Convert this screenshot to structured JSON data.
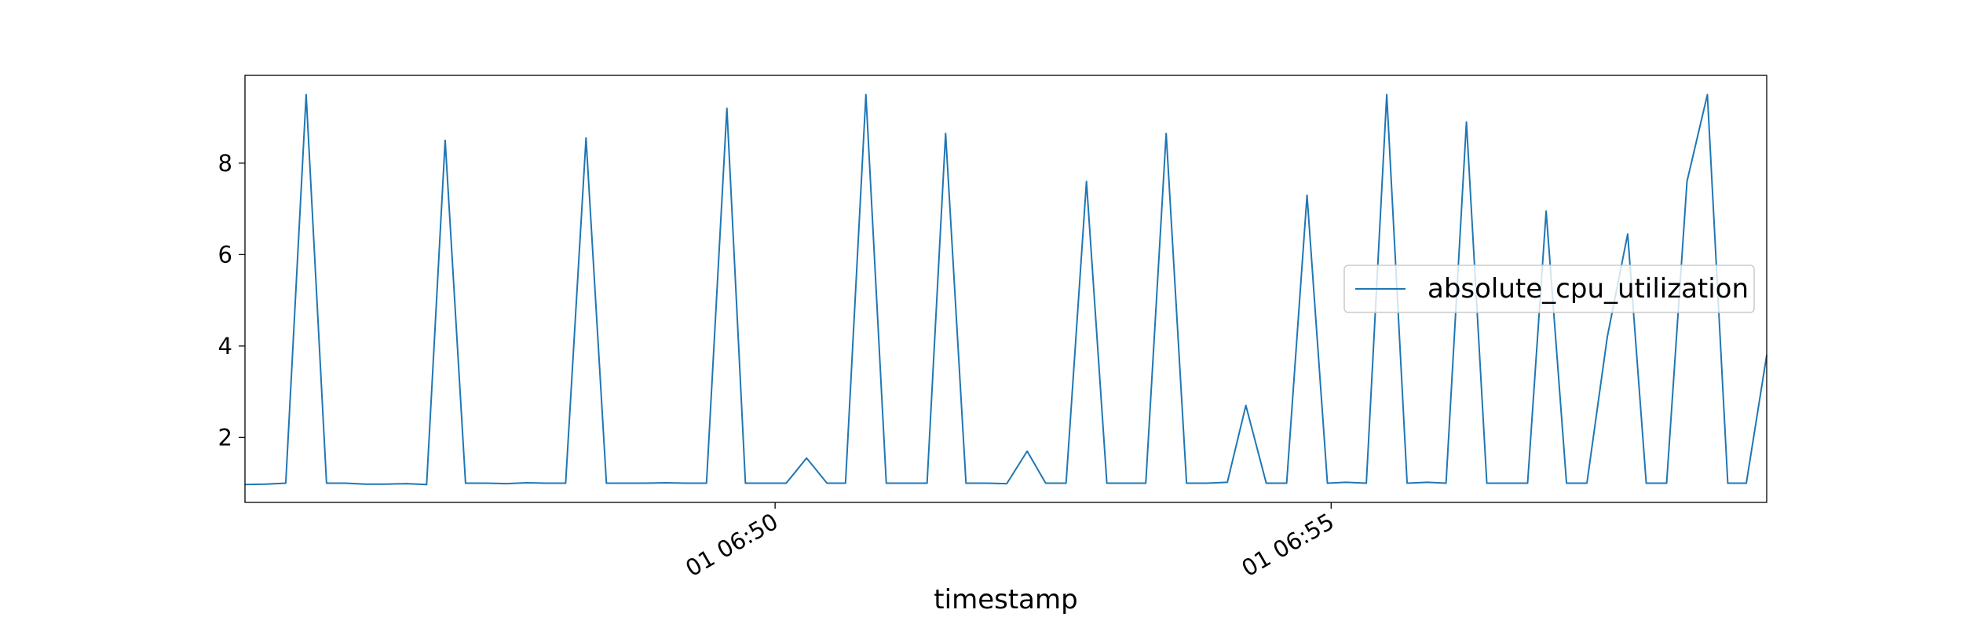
{
  "chart_data": {
    "type": "line",
    "xlabel": "timestamp",
    "x": [
      "01 06:45:14",
      "01 06:45:25",
      "01 06:45:36",
      "01 06:45:47",
      "01 06:45:58",
      "01 06:46:08",
      "01 06:46:19",
      "01 06:46:30",
      "01 06:46:41",
      "01 06:46:52",
      "01 06:47:02",
      "01 06:47:13",
      "01 06:47:24",
      "01 06:47:35",
      "01 06:47:46",
      "01 06:47:56",
      "01 06:48:07",
      "01 06:48:18",
      "01 06:48:29",
      "01 06:48:40",
      "01 06:48:50",
      "01 06:49:01",
      "01 06:49:12",
      "01 06:49:23",
      "01 06:49:34",
      "01 06:49:44",
      "01 06:49:55",
      "01 06:50:06",
      "01 06:50:17",
      "01 06:50:28",
      "01 06:50:38",
      "01 06:50:49",
      "01 06:51:00",
      "01 06:51:11",
      "01 06:51:22",
      "01 06:51:32",
      "01 06:51:43",
      "01 06:51:54",
      "01 06:52:05",
      "01 06:52:16",
      "01 06:52:26",
      "01 06:52:37",
      "01 06:52:48",
      "01 06:52:59",
      "01 06:53:10",
      "01 06:53:20",
      "01 06:53:31",
      "01 06:53:42",
      "01 06:53:53",
      "01 06:54:04",
      "01 06:54:14",
      "01 06:54:25",
      "01 06:54:36",
      "01 06:54:47",
      "01 06:54:58",
      "01 06:55:08",
      "01 06:55:19",
      "01 06:55:30",
      "01 06:55:41",
      "01 06:55:52",
      "01 06:56:02",
      "01 06:56:13",
      "01 06:56:24",
      "01 06:56:35",
      "01 06:56:46",
      "01 06:56:56",
      "01 06:57:07",
      "01 06:57:18",
      "01 06:57:29",
      "01 06:57:40",
      "01 06:57:50",
      "01 06:58:01",
      "01 06:58:12",
      "01 06:58:23",
      "01 06:58:34",
      "01 06:58:44",
      "01 06:58:55"
    ],
    "series": [
      {
        "name": "absolute_cpu_utilization",
        "color": "#1f77b4",
        "values": [
          0.97,
          0.98,
          1.0,
          9.5,
          1.0,
          1.0,
          0.98,
          0.98,
          0.99,
          0.97,
          8.5,
          1.0,
          1.0,
          0.99,
          1.01,
          1.0,
          1.0,
          8.55,
          1.0,
          1.0,
          1.0,
          1.01,
          1.0,
          1.0,
          9.2,
          1.0,
          1.0,
          1.0,
          1.55,
          1.0,
          1.0,
          9.5,
          1.0,
          1.0,
          1.0,
          8.65,
          1.0,
          1.0,
          0.99,
          1.7,
          1.0,
          1.0,
          7.6,
          1.0,
          1.0,
          1.0,
          8.65,
          1.0,
          1.0,
          1.02,
          2.7,
          1.0,
          1.0,
          7.3,
          1.0,
          1.02,
          1.0,
          9.5,
          1.0,
          1.02,
          1.0,
          8.9,
          1.0,
          1.0,
          1.0,
          6.95,
          1.0,
          1.0,
          4.2,
          6.45,
          1.0,
          1.0,
          7.6,
          9.5,
          1.0,
          1.0,
          3.8
        ]
      }
    ],
    "xlim": [
      "01 06:45:14",
      "01 06:58:55"
    ],
    "xticks": [
      {
        "value": "01 06:50:00",
        "label": "01 06:50"
      },
      {
        "value": "01 06:55:00",
        "label": "01 06:55"
      }
    ],
    "ylim": [
      0.58,
      9.92
    ],
    "yticks": [
      2,
      4,
      6,
      8
    ],
    "grid": false,
    "legend": "center right"
  }
}
